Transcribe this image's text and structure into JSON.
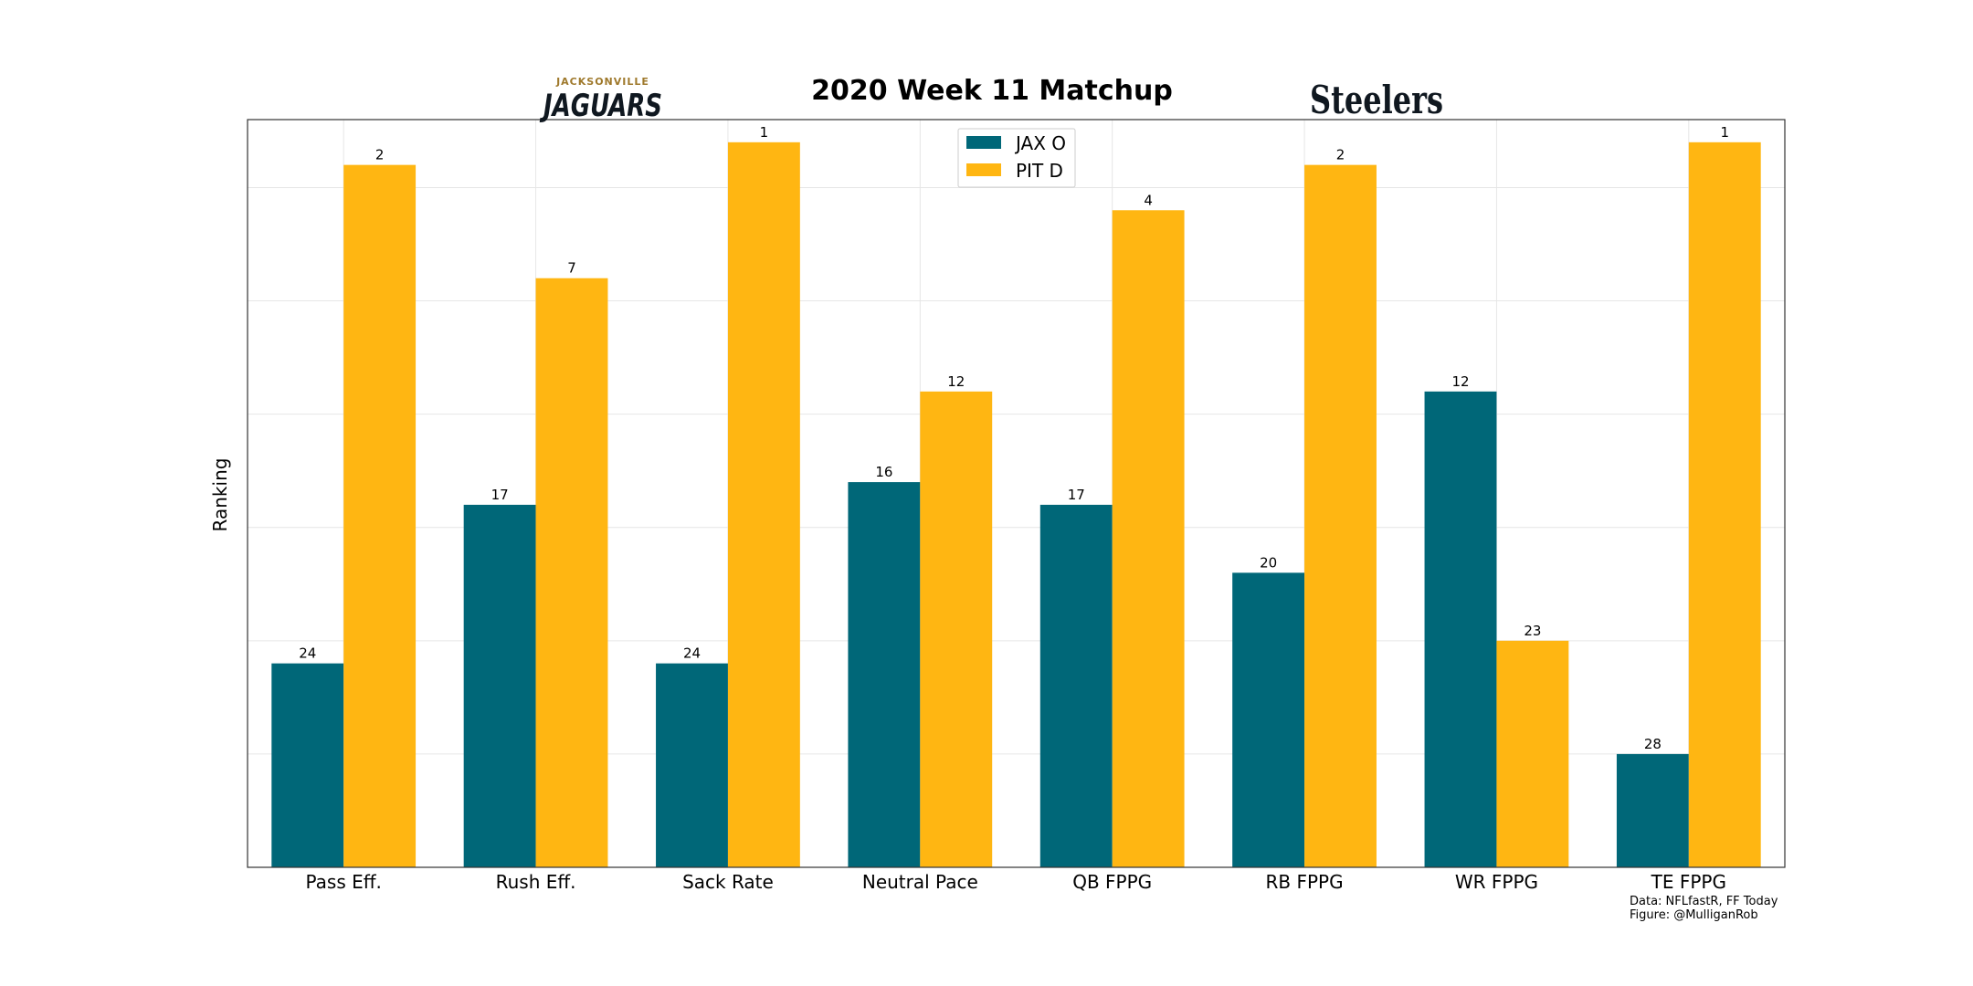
{
  "chart_data": {
    "type": "bar",
    "title": "2020 Week 11 Matchup",
    "ylabel": "Ranking",
    "xlabel": "",
    "categories": [
      "Pass Eff.",
      "Rush Eff.",
      "Sack Rate",
      "Neutral Pace",
      "QB FPPG",
      "RB FPPG",
      "WR FPPG",
      "TE FPPG"
    ],
    "series": [
      {
        "name": "JAX O",
        "color": "#006778",
        "values": [
          24,
          17,
          24,
          16,
          17,
          20,
          12,
          28
        ]
      },
      {
        "name": "PIT D",
        "color": "#FFB612",
        "values": [
          2,
          7,
          1,
          12,
          4,
          2,
          23,
          1
        ]
      }
    ],
    "bar_height_rule": "height = 33 - rank",
    "ylim": [
      0,
      33
    ],
    "grid": true,
    "legend": "top-center",
    "y_ticks_visible": false
  },
  "logos": {
    "left": {
      "small": "JACKSONVILLE",
      "big": "JAGUARS",
      "small_color": "#9F792C",
      "big_color": "#101820"
    },
    "right": {
      "text": "Steelers",
      "color": "#101820"
    }
  },
  "credits": [
    "Data: NFLfastR, FF Today",
    "Figure: @MulliganRob"
  ]
}
